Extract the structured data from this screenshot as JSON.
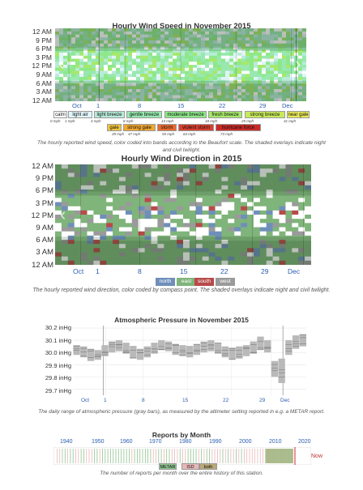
{
  "speed_chart": {
    "chart_data": {
      "type": "heatmap",
      "title": "Hourly Wind Speed in November 2015",
      "y_tick_labels": [
        "12 AM",
        "9 PM",
        "6 PM",
        "3 PM",
        "12 PM",
        "9 AM",
        "6 AM",
        "3 AM",
        "12 AM"
      ],
      "x_tick_labels": [
        "Oct",
        "1",
        "8",
        "15",
        "22",
        "29",
        "Dec"
      ],
      "legend": [
        {
          "label": "calm",
          "color": "#ffffff",
          "mph": "0 mph"
        },
        {
          "label": "light air",
          "color": "#e0f4f8",
          "mph": "1 mph"
        },
        {
          "label": "light breeze",
          "color": "#b7ecd9",
          "mph": "4 mph"
        },
        {
          "label": "gentle breeze",
          "color": "#98e8b0",
          "mph": "8 mph"
        },
        {
          "label": "moderate breeze",
          "color": "#8ee88a",
          "mph": "13 mph"
        },
        {
          "label": "fresh breeze",
          "color": "#a6e86a",
          "mph": "18 mph"
        },
        {
          "label": "strong breeze",
          "color": "#c8ea5a",
          "mph": "25 mph"
        },
        {
          "label": "near gale",
          "color": "#e8e85a",
          "mph": "31 mph"
        },
        {
          "label": "gale",
          "color": "#f2c640",
          "mph": "39 mph"
        },
        {
          "label": "strong gale",
          "color": "#f0a830",
          "mph": "47 mph"
        },
        {
          "label": "storm",
          "color": "#e86a30",
          "mph": "55 mph"
        },
        {
          "label": "violent storm",
          "color": "#d84030",
          "mph": "64 mph"
        },
        {
          "label": "hurricane force",
          "color": "#c82a28",
          "mph": "73 mph"
        }
      ],
      "dominant_categories": [
        "light breeze",
        "gentle breeze",
        "moderate breeze"
      ]
    },
    "caption": "The hourly reported wind speed, color coded into bands according to the Beaufort scale. The shaded overlays indicate night and civil twilight."
  },
  "direction_chart": {
    "chart_data": {
      "type": "heatmap",
      "title": "Hourly Wind Direction in 2015",
      "y_tick_labels": [
        "12 AM",
        "9 PM",
        "6 PM",
        "3 PM",
        "12 PM",
        "9 AM",
        "6 AM",
        "3 AM",
        "12 AM"
      ],
      "x_tick_labels": [
        "Oct",
        "1",
        "8",
        "15",
        "22",
        "29",
        "Dec"
      ],
      "legend": [
        {
          "label": "north",
          "color": "#6f8fba"
        },
        {
          "label": "east",
          "color": "#7fb47a"
        },
        {
          "label": "south",
          "color": "#b84a4a"
        },
        {
          "label": "west",
          "color": "#9a9a9a"
        }
      ],
      "dominant_direction": "east"
    },
    "caption": "The hourly reported wind direction, color coded by compass point. The shaded overlays indicate night and civil twilight."
  },
  "pressure_chart": {
    "chart_data": {
      "type": "bar",
      "title": "Atmospheric Pressure in November 2015",
      "y_tick_labels": [
        "30.2 inHg",
        "30.1 inHg",
        "30.0 inHg",
        "29.9 inHg",
        "29.8 inHg",
        "29.7 inHg"
      ],
      "ylim": [
        29.65,
        30.22
      ],
      "x_tick_labels": [
        "Oct",
        "1",
        "8",
        "15",
        "22",
        "29",
        "Dec"
      ],
      "daily_range_low": [
        29.98,
        29.96,
        29.93,
        29.94,
        29.97,
        30.0,
        30.01,
        29.99,
        29.95,
        29.94,
        29.96,
        29.99,
        30.02,
        30.01,
        29.98,
        29.97,
        29.96,
        29.98,
        30.0,
        30.01,
        29.99,
        29.96,
        29.94,
        29.95,
        29.97,
        29.99,
        30.02,
        30.0,
        29.8,
        29.75,
        29.98,
        30.03,
        30.05
      ],
      "daily_range_high": [
        30.06,
        30.05,
        30.03,
        30.02,
        30.06,
        30.09,
        30.1,
        30.08,
        30.05,
        30.03,
        30.05,
        30.08,
        30.1,
        30.09,
        30.07,
        30.06,
        30.05,
        30.07,
        30.09,
        30.1,
        30.08,
        30.05,
        30.04,
        30.05,
        30.06,
        30.09,
        30.13,
        30.1,
        29.93,
        29.95,
        30.1,
        30.14,
        30.15
      ]
    },
    "caption": "The daily range of atmospheric pressure (gray bars), as measured by the altimeter setting reported in e.g. a METAR report."
  },
  "reports_chart": {
    "chart_data": {
      "type": "bar",
      "title": "Reports by Month",
      "x_tick_labels": [
        "1940",
        "1950",
        "1960",
        "1970",
        "1980",
        "1990",
        "2000",
        "2010",
        "2020"
      ],
      "legend": [
        {
          "label": "METAR",
          "color": "#8fc48f"
        },
        {
          "label": "ISD",
          "color": "#e8b8b8"
        },
        {
          "label": "both",
          "color": "#b8a878"
        }
      ],
      "now_label": "Now"
    },
    "caption": "The number of reports per month over the entire history of this station."
  }
}
